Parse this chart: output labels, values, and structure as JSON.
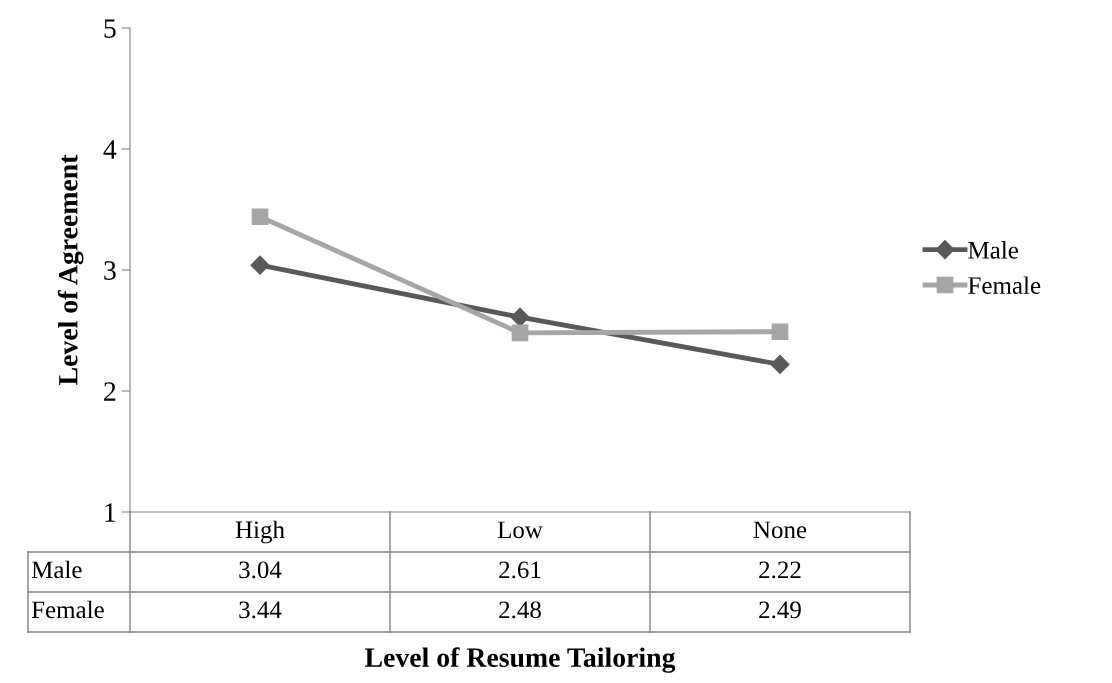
{
  "chart_data": {
    "type": "line",
    "xlabel": "Level of Resume Tailoring",
    "ylabel": "Level of Agreement",
    "categories": [
      "High",
      "Low",
      "None"
    ],
    "series": [
      {
        "name": "Male",
        "color": "#595959",
        "marker": "diamond",
        "values": [
          3.04,
          2.61,
          2.22
        ]
      },
      {
        "name": "Female",
        "color": "#a6a6a6",
        "marker": "square",
        "values": [
          3.44,
          2.48,
          2.49
        ]
      }
    ],
    "ylim": [
      1,
      5
    ],
    "yticks": [
      1,
      2,
      3,
      4,
      5
    ],
    "grid": false,
    "legend": "right",
    "data_labels": true
  }
}
